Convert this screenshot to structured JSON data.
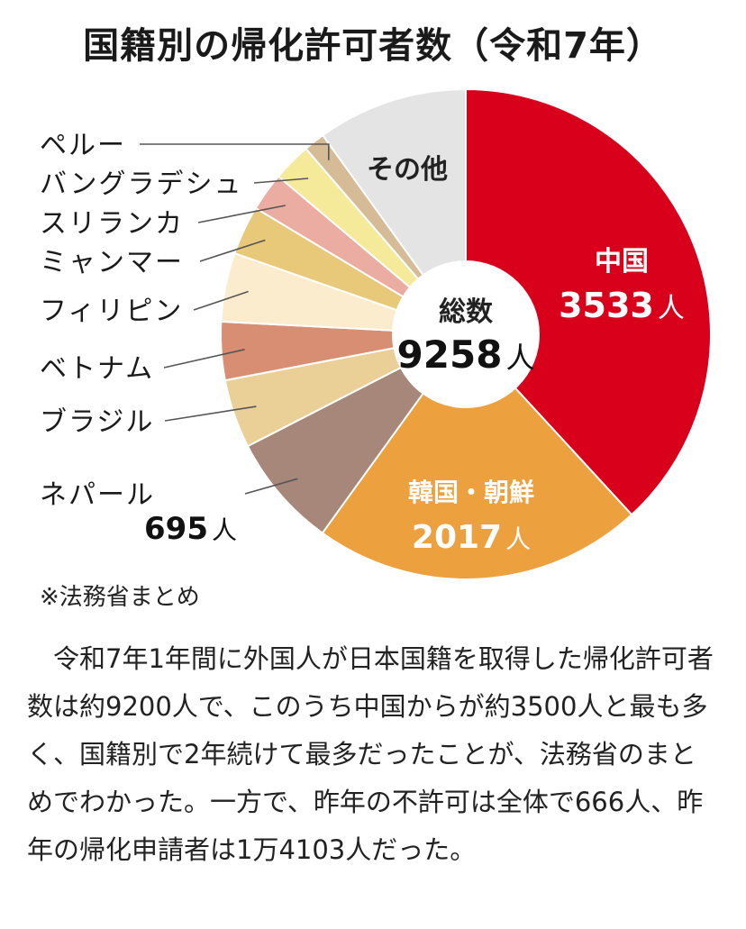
{
  "chart_data": {
    "type": "pie",
    "title": "国籍別の帰化許可者数（令和7年）",
    "center_label": "総数",
    "total": 9258,
    "unit": "人",
    "slices": [
      {
        "label": "中国",
        "value": 3533,
        "color": "#d9001b"
      },
      {
        "label": "韓国・朝鮮",
        "value": 2017,
        "color": "#eda03e"
      },
      {
        "label": "ネパール",
        "value": 695,
        "color": "#a6877a"
      },
      {
        "label": "ブラジル",
        "value": 420,
        "color": "#ead097"
      },
      {
        "label": "ベトナム",
        "value": 355,
        "color": "#d88e72"
      },
      {
        "label": "フィリピン",
        "value": 420,
        "color": "#fbeccd"
      },
      {
        "label": "ミャンマー",
        "value": 300,
        "color": "#e8c97a"
      },
      {
        "label": "スリランカ",
        "value": 235,
        "color": "#ebaca1"
      },
      {
        "label": "バングラデシュ",
        "value": 235,
        "color": "#f5e99a"
      },
      {
        "label": "ペルー",
        "value": 130,
        "color": "#d6bc96"
      },
      {
        "label": "その他",
        "value": 918,
        "color": "#e4e4e4"
      }
    ]
  },
  "source": "※法務省まとめ",
  "article": "令和7年1年間に外国人が日本国籍を取得した帰化許可者数は約9200人で、このうち中国からが約3500人と最も多く、国籍別で2年続けて最多だったことが、法務省のまとめでわかった。一方で、昨年の不許可は全体で666人、昨年の帰化申請者は1万4103人だった。"
}
